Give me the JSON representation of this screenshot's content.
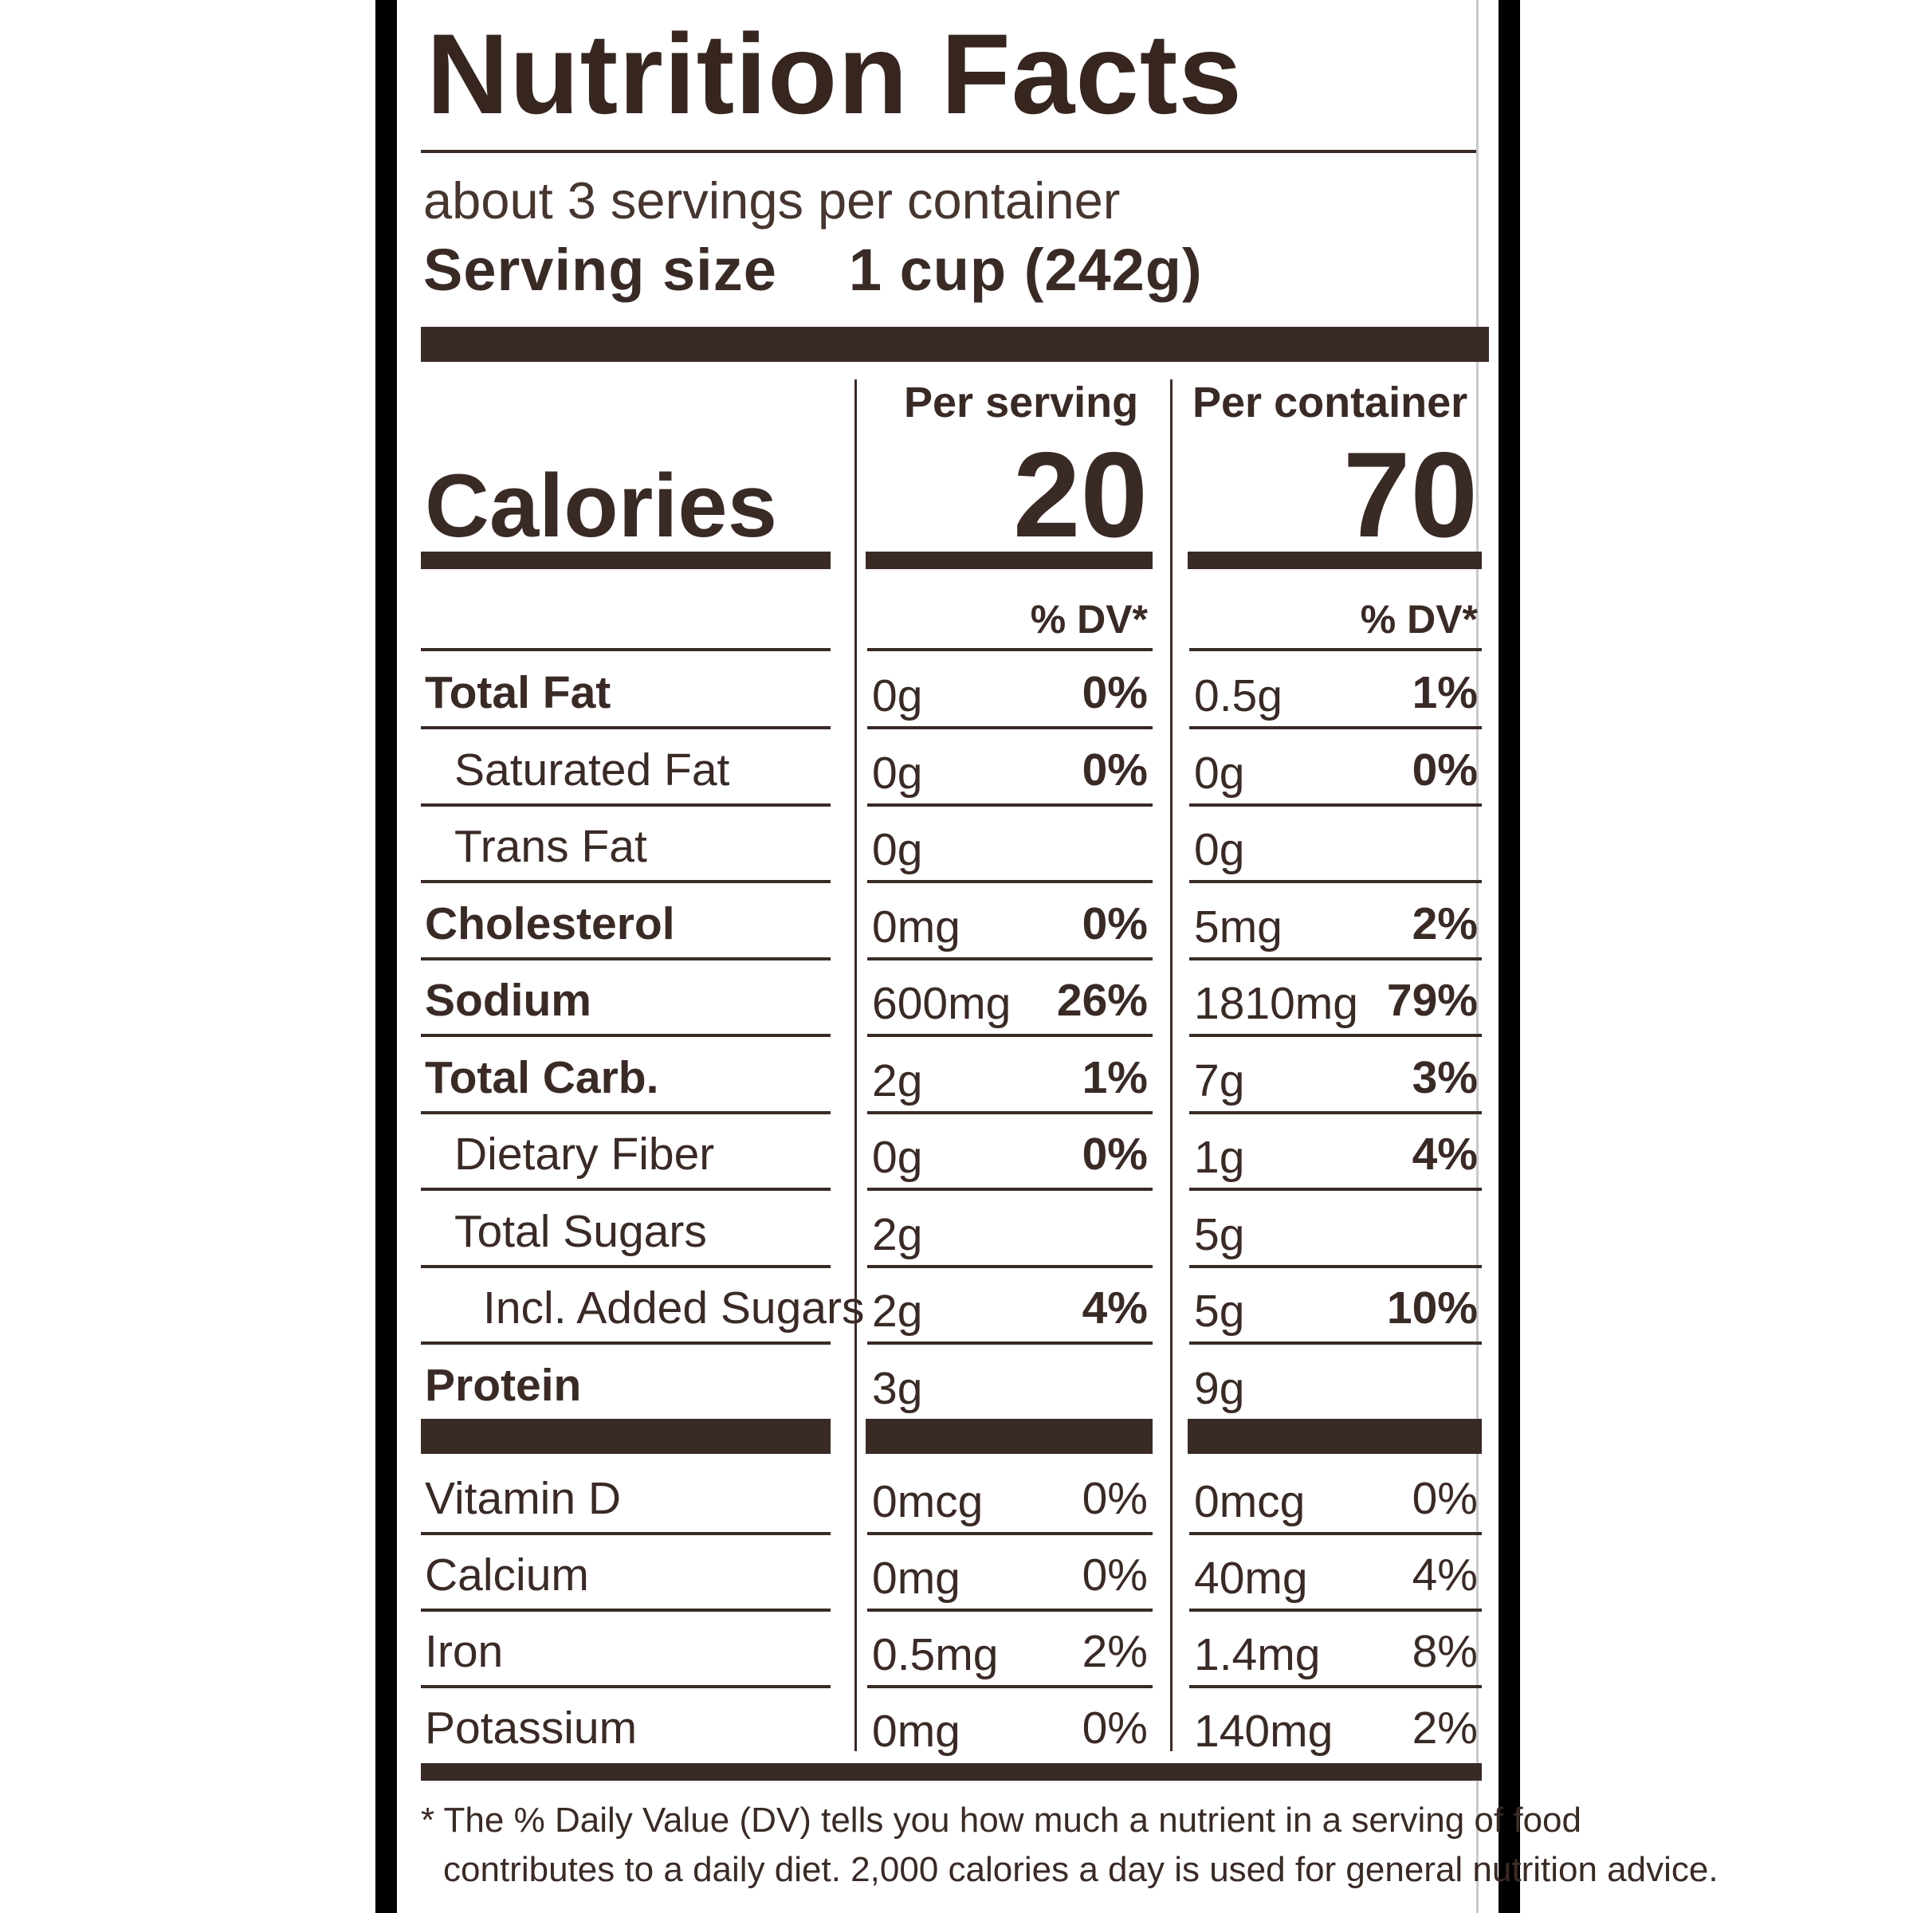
{
  "label": {
    "title": "Nutrition Facts",
    "servings_per_container": "about 3 servings per container",
    "serving_size_label": "Serving size",
    "serving_size_value": "1 cup (242g)",
    "column_headers": {
      "per_serving": "Per serving",
      "per_container": "Per container"
    },
    "calories_label": "Calories",
    "calories_per_serving": "20",
    "calories_per_container": "70",
    "dv_header": "% DV*",
    "nutrients": [
      {
        "name": "Total Fat",
        "bold": true,
        "indent": 0,
        "serving_amount": "0g",
        "serving_dv": "0%",
        "container_amount": "0.5g",
        "container_dv": "1%"
      },
      {
        "name": "Saturated Fat",
        "bold": false,
        "indent": 1,
        "serving_amount": "0g",
        "serving_dv": "0%",
        "container_amount": "0g",
        "container_dv": "0%"
      },
      {
        "name": "Trans Fat",
        "bold": false,
        "indent": 1,
        "serving_amount": "0g",
        "serving_dv": "",
        "container_amount": "0g",
        "container_dv": ""
      },
      {
        "name": "Cholesterol",
        "bold": true,
        "indent": 0,
        "serving_amount": "0mg",
        "serving_dv": "0%",
        "container_amount": "5mg",
        "container_dv": "2%"
      },
      {
        "name": "Sodium",
        "bold": true,
        "indent": 0,
        "serving_amount": "600mg",
        "serving_dv": "26%",
        "container_amount": "1810mg",
        "container_dv": "79%"
      },
      {
        "name": "Total Carb.",
        "bold": true,
        "indent": 0,
        "serving_amount": "2g",
        "serving_dv": "1%",
        "container_amount": "7g",
        "container_dv": "3%"
      },
      {
        "name": "Dietary Fiber",
        "bold": false,
        "indent": 1,
        "serving_amount": "0g",
        "serving_dv": "0%",
        "container_amount": "1g",
        "container_dv": "4%"
      },
      {
        "name": "Total Sugars",
        "bold": false,
        "indent": 1,
        "serving_amount": "2g",
        "serving_dv": "",
        "container_amount": "5g",
        "container_dv": ""
      },
      {
        "name": "Incl. Added Sugars",
        "bold": false,
        "indent": 2,
        "serving_amount": "2g",
        "serving_dv": "4%",
        "container_amount": "5g",
        "container_dv": "10%"
      },
      {
        "name": "Protein",
        "bold": true,
        "indent": 0,
        "serving_amount": "3g",
        "serving_dv": "",
        "container_amount": "9g",
        "container_dv": ""
      }
    ],
    "vitamins": [
      {
        "name": "Vitamin D",
        "serving_amount": "0mcg",
        "serving_dv": "0%",
        "container_amount": "0mcg",
        "container_dv": "0%"
      },
      {
        "name": "Calcium",
        "serving_amount": "0mg",
        "serving_dv": "0%",
        "container_amount": "40mg",
        "container_dv": "4%"
      },
      {
        "name": "Iron",
        "serving_amount": "0.5mg",
        "serving_dv": "2%",
        "container_amount": "1.4mg",
        "container_dv": "8%"
      },
      {
        "name": "Potassium",
        "serving_amount": "0mg",
        "serving_dv": "0%",
        "container_amount": "140mg",
        "container_dv": "2%"
      }
    ],
    "footnote_line1": "* The % Daily Value (DV) tells you how much a nutrient in a serving of food",
    "footnote_line2": "contributes to a daily diet. 2,000 calories a day is used for general nutrition advice."
  }
}
